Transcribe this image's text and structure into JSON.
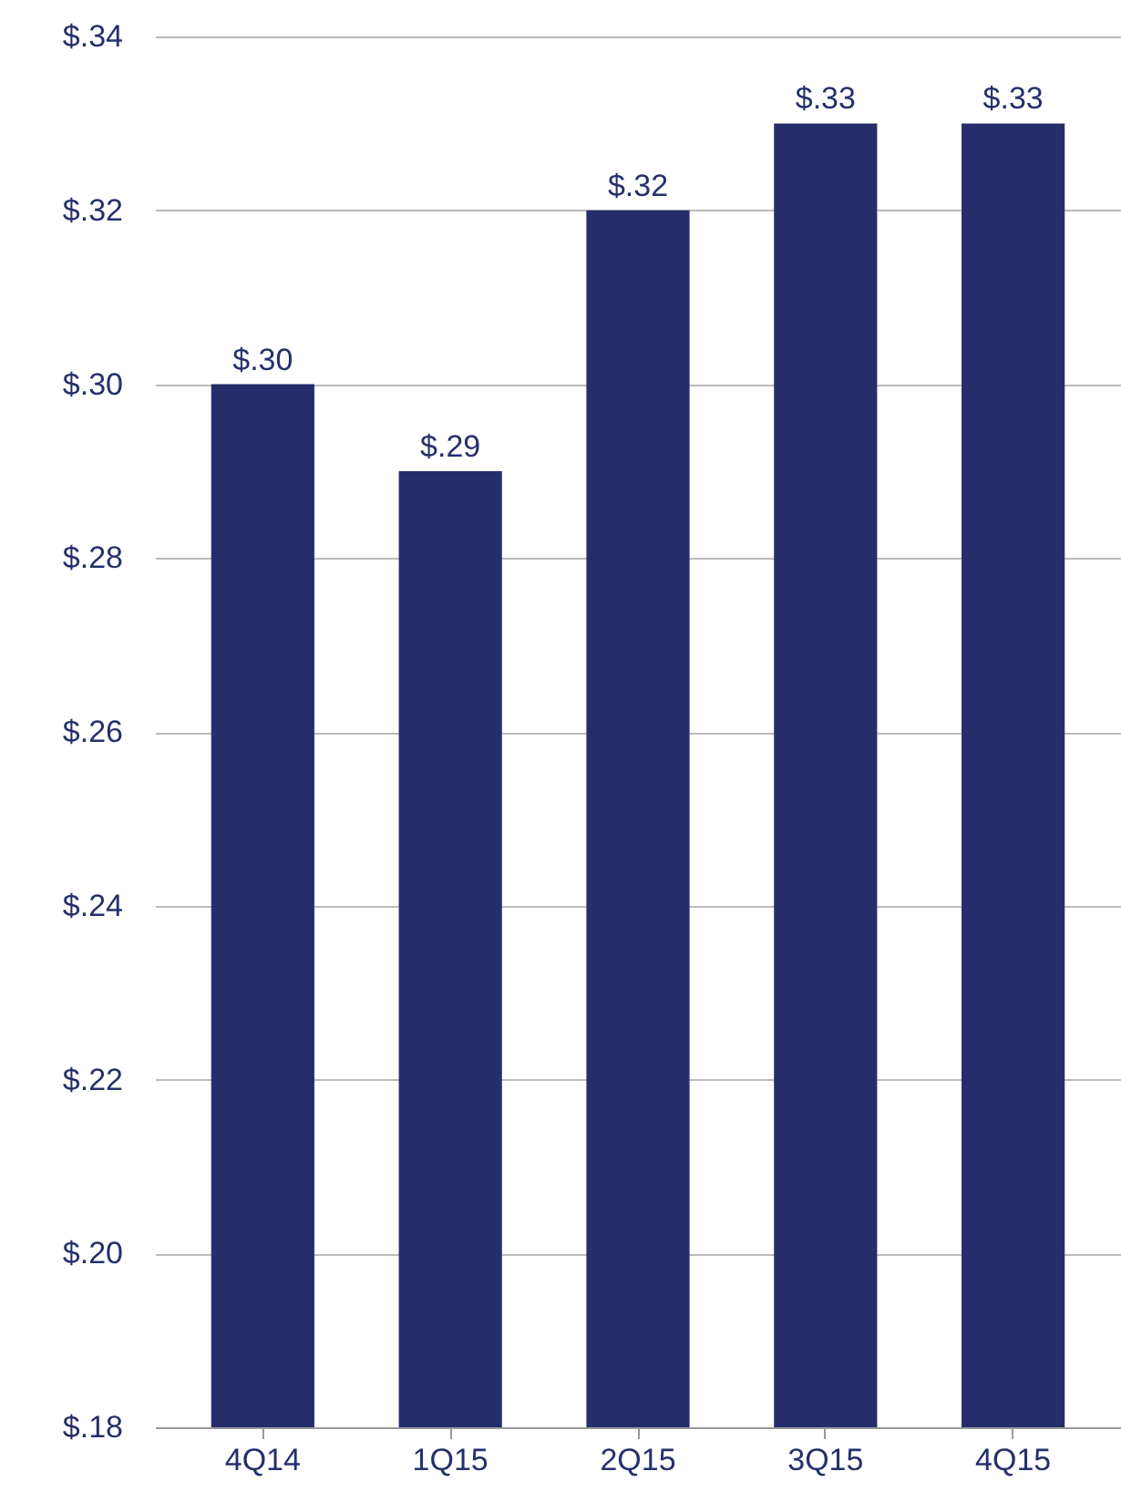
{
  "chart_data": {
    "type": "bar",
    "categories": [
      "4Q14",
      "1Q15",
      "2Q15",
      "3Q15",
      "4Q15"
    ],
    "values": [
      0.3,
      0.29,
      0.32,
      0.33,
      0.33
    ],
    "value_labels": [
      "$.30",
      "$.29",
      "$.32",
      "$.33",
      "$.33"
    ],
    "color": "#252d6b",
    "ylim": [
      0.18,
      0.34
    ],
    "yticks": [
      {
        "value": 0.18,
        "label": "$.18"
      },
      {
        "value": 0.2,
        "label": "$.20"
      },
      {
        "value": 0.22,
        "label": "$.22"
      },
      {
        "value": 0.24,
        "label": "$.24"
      },
      {
        "value": 0.26,
        "label": "$.26"
      },
      {
        "value": 0.28,
        "label": "$.28"
      },
      {
        "value": 0.3,
        "label": "$.30"
      },
      {
        "value": 0.32,
        "label": "$.32"
      },
      {
        "value": 0.34,
        "label": "$.34"
      }
    ],
    "grid": "y"
  }
}
